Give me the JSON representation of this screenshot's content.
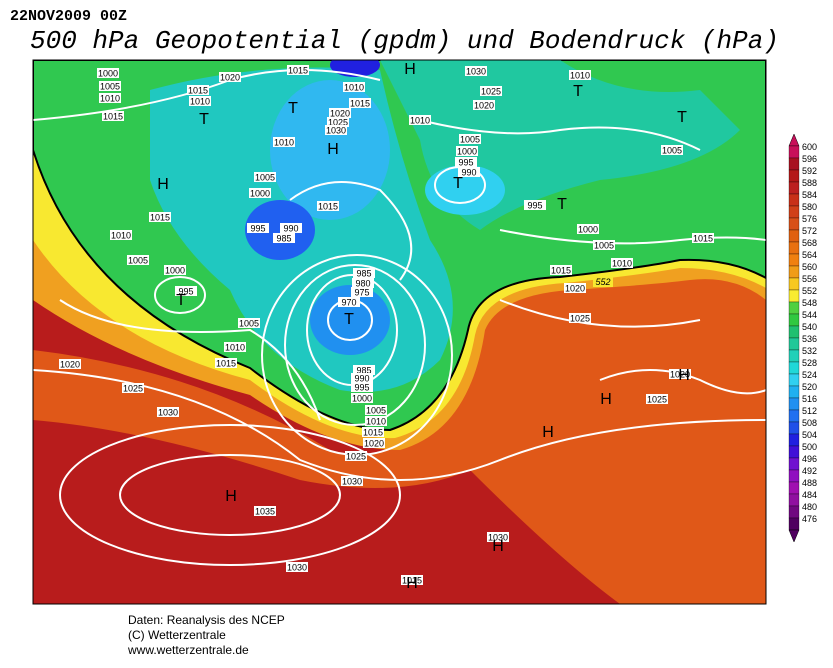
{
  "header": {
    "date": "22NOV2009 00Z",
    "title": "500 hPa Geopotential (gpdm) und Bodendruck (hPa)"
  },
  "footer": {
    "lines": [
      "Daten: Reanalysis des NCEP",
      "(C) Wetterzentrale",
      "www.wetterzentrale.de"
    ]
  },
  "colorbar": {
    "ticks": [
      600,
      596,
      592,
      588,
      584,
      580,
      576,
      572,
      568,
      564,
      560,
      556,
      552,
      548,
      544,
      540,
      536,
      532,
      528,
      524,
      520,
      516,
      512,
      508,
      504,
      500,
      496,
      492,
      488,
      484,
      480,
      476
    ],
    "colors": [
      "#c8105a",
      "#a81020",
      "#b41818",
      "#bc2020",
      "#c83018",
      "#d04018",
      "#d85018",
      "#e06010",
      "#e87010",
      "#f08010",
      "#f09c18",
      "#f8c820",
      "#f8ec30",
      "#50d040",
      "#30c840",
      "#20c070",
      "#20c898",
      "#20d0b8",
      "#20d8d8",
      "#30d0f0",
      "#20b0f0",
      "#2090f0",
      "#2070f0",
      "#2050e8",
      "#2020e0",
      "#4010d8",
      "#7010d0",
      "#9010c0",
      "#a010b0",
      "#9010a0",
      "#700880",
      "#500060"
    ]
  },
  "map": {
    "contour_label": "552",
    "isobar_labels": [
      "1000",
      "1005",
      "1010",
      "1015",
      "1020",
      "1015",
      "1015",
      "1010",
      "1010",
      "1015",
      "1020",
      "1025",
      "1030",
      "1010",
      "1005",
      "1000",
      "995",
      "990",
      "985",
      "1015",
      "1010",
      "1030",
      "1025",
      "1020",
      "1010",
      "1005",
      "1000",
      "995",
      "990",
      "995",
      "1000",
      "1005",
      "1010",
      "1015",
      "1005",
      "1015",
      "1020",
      "1025",
      "1015",
      "1010",
      "1005",
      "1000",
      "995",
      "1005",
      "1010",
      "1015",
      "1020",
      "1025",
      "1030",
      "985",
      "980",
      "975",
      "970",
      "985",
      "990",
      "995",
      "1000",
      "1005",
      "1010",
      "1015",
      "1020",
      "1025",
      "1030",
      "1035",
      "1030",
      "1030",
      "1020",
      "1025",
      "1015"
    ],
    "centers": [
      "T",
      "T",
      "H",
      "H",
      "T",
      "T",
      "T",
      "T",
      "T",
      "T",
      "H",
      "H",
      "H",
      "H",
      "H",
      "H",
      "H"
    ]
  }
}
